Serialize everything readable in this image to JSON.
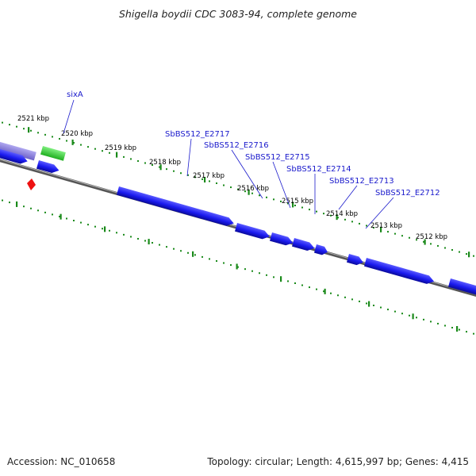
{
  "title": "Shigella boydii CDC 3083-94, complete genome",
  "accession": "Accession: NC_010658",
  "summary": "Topology: circular; Length: 4,615,997 bp; Genes: 4,415",
  "colors": {
    "backbone": "#8a8a8a",
    "cds_forward": "#1a1aee",
    "cds_faded": "#8a7fdc",
    "rna": "#2fcf2f",
    "marker": "#ee1111",
    "ticks": "#1a8a1a",
    "label": "#1a1acc"
  },
  "ticks": [
    {
      "label": "2521 kbp"
    },
    {
      "label": "2520 kbp"
    },
    {
      "label": "2519 kbp"
    },
    {
      "label": "2518 kbp"
    },
    {
      "label": "2517 kbp"
    },
    {
      "label": "2516 kbp"
    },
    {
      "label": "2515 kbp"
    },
    {
      "label": "2514 kbp"
    },
    {
      "label": "2513 kbp"
    },
    {
      "label": "2512 kbp"
    }
  ],
  "gene_labels": [
    {
      "name": "sixA"
    },
    {
      "name": "SbBS512_E2717"
    },
    {
      "name": "SbBS512_E2716"
    },
    {
      "name": "SbBS512_E2715"
    },
    {
      "name": "SbBS512_E2714"
    },
    {
      "name": "SbBS512_E2713"
    },
    {
      "name": "SbBS512_E2712"
    }
  ]
}
